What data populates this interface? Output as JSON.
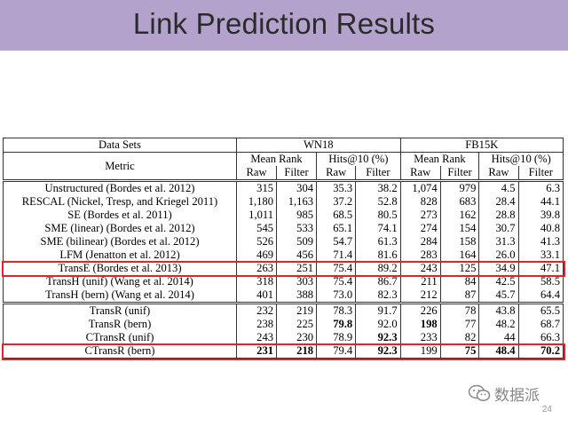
{
  "slide": {
    "title": "Link Prediction Results",
    "page_number": "24",
    "watermark_text": "数据派",
    "colors": {
      "title_bar": "#b3a2cc",
      "highlight": "#e0222a"
    }
  },
  "table": {
    "header1": [
      "Data Sets",
      "WN18",
      "FB15K"
    ],
    "metric_label": "Metric",
    "header2": [
      "Mean Rank",
      "Hits@10 (%)",
      "Mean Rank",
      "Hits@10 (%)"
    ],
    "header3": [
      "Raw",
      "Filter",
      "Raw",
      "Filter",
      "Raw",
      "Filter",
      "Raw",
      "Filter"
    ],
    "groups": [
      [
        [
          "Unstructured (Bordes et al. 2012)",
          "315",
          "304",
          "35.3",
          "38.2",
          "1,074",
          "979",
          "4.5",
          "6.3"
        ],
        [
          "RESCAL (Nickel, Tresp, and Kriegel 2011)",
          "1,180",
          "1,163",
          "37.2",
          "52.8",
          "828",
          "683",
          "28.4",
          "44.1"
        ],
        [
          "SE (Bordes et al. 2011)",
          "1,011",
          "985",
          "68.5",
          "80.5",
          "273",
          "162",
          "28.8",
          "39.8"
        ],
        [
          "SME (linear) (Bordes et al. 2012)",
          "545",
          "533",
          "65.1",
          "74.1",
          "274",
          "154",
          "30.7",
          "40.8"
        ],
        [
          "SME (bilinear) (Bordes et al. 2012)",
          "526",
          "509",
          "54.7",
          "61.3",
          "284",
          "158",
          "31.3",
          "41.3"
        ],
        [
          "LFM (Jenatton et al. 2012)",
          "469",
          "456",
          "71.4",
          "81.6",
          "283",
          "164",
          "26.0",
          "33.1"
        ],
        [
          "TransE (Bordes et al. 2013)",
          "263",
          "251",
          "75.4",
          "89.2",
          "243",
          "125",
          "34.9",
          "47.1"
        ],
        [
          "TransH (unif) (Wang et al. 2014)",
          "318",
          "303",
          "75.4",
          "86.7",
          "211",
          "84",
          "42.5",
          "58.5"
        ],
        [
          "TransH (bern) (Wang et al. 2014)",
          "401",
          "388",
          "73.0",
          "82.3",
          "212",
          "87",
          "45.7",
          "64.4"
        ]
      ],
      [
        [
          "TransR (unif)",
          "232",
          "219",
          "78.3",
          "91.7",
          "226",
          "78",
          "43.8",
          "65.5"
        ],
        [
          "TransR (bern)",
          "238",
          "225",
          "79.8",
          "92.0",
          "198",
          "77",
          "48.2",
          "68.7"
        ],
        [
          "CTransR (unif)",
          "243",
          "230",
          "78.9",
          "92.3",
          "233",
          "82",
          "44",
          "66.3"
        ],
        [
          "CTransR (bern)",
          "231",
          "218",
          "79.4",
          "92.3",
          "199",
          "75",
          "48.4",
          "70.2"
        ]
      ]
    ],
    "bold_cells": [
      [
        1,
        1,
        3
      ],
      [
        1,
        1,
        5
      ],
      [
        1,
        2,
        4
      ],
      [
        1,
        3,
        1
      ],
      [
        1,
        3,
        2
      ],
      [
        1,
        3,
        4
      ],
      [
        1,
        3,
        6
      ],
      [
        1,
        3,
        7
      ],
      [
        1,
        3,
        8
      ]
    ],
    "highlighted_rows": [
      [
        0,
        6
      ],
      [
        1,
        3
      ]
    ]
  }
}
